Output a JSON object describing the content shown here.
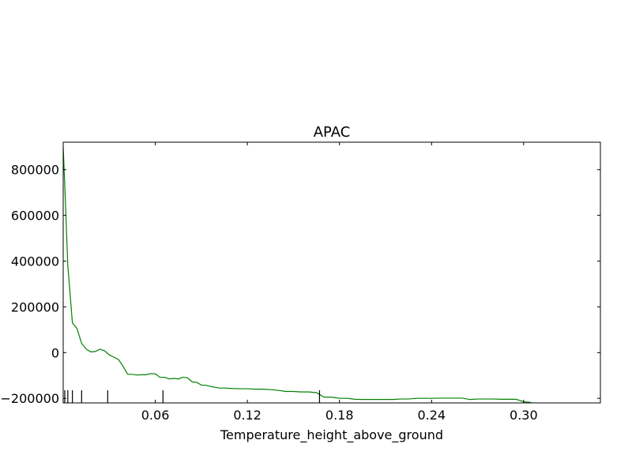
{
  "chart_data": {
    "type": "line",
    "title": "APAC",
    "xlabel": "Temperature_height_above_ground",
    "ylabel": "",
    "xlim": [
      0.0,
      0.35
    ],
    "ylim": [
      -220000,
      920000
    ],
    "xticks": [
      0.06,
      0.12,
      0.18,
      0.24,
      0.3
    ],
    "xtick_labels": [
      "0.06",
      "0.12",
      "0.18",
      "0.24",
      "0.30"
    ],
    "yticks": [
      -200000,
      0,
      200000,
      400000,
      600000,
      800000
    ],
    "ytick_labels": [
      "−200000",
      "0",
      "200000",
      "400000",
      "600000",
      "800000"
    ],
    "grid": false,
    "series": [
      {
        "color": "#008000",
        "x": [
          0.0,
          0.0015,
          0.003,
          0.006,
          0.009,
          0.012,
          0.015,
          0.018,
          0.021,
          0.024,
          0.027,
          0.03,
          0.033,
          0.036,
          0.039,
          0.042,
          0.045,
          0.048,
          0.051,
          0.054,
          0.057,
          0.06,
          0.063,
          0.066,
          0.069,
          0.072,
          0.075,
          0.078,
          0.081,
          0.084,
          0.087,
          0.09,
          0.093,
          0.096,
          0.099,
          0.102,
          0.105,
          0.11,
          0.115,
          0.12,
          0.125,
          0.13,
          0.135,
          0.14,
          0.145,
          0.15,
          0.155,
          0.16,
          0.165,
          0.17,
          0.175,
          0.18,
          0.185,
          0.19,
          0.195,
          0.2,
          0.205,
          0.21,
          0.215,
          0.22,
          0.225,
          0.23,
          0.235,
          0.24,
          0.245,
          0.25,
          0.255,
          0.26,
          0.265,
          0.27,
          0.275,
          0.28,
          0.285,
          0.29,
          0.295,
          0.3,
          0.305
        ],
        "y": [
          900000,
          650000,
          380000,
          130000,
          105000,
          40000,
          15000,
          3000,
          5000,
          15000,
          8000,
          -10000,
          -20000,
          -30000,
          -60000,
          -95000,
          -95000,
          -98000,
          -97000,
          -97000,
          -92000,
          -93000,
          -108000,
          -108000,
          -115000,
          -113000,
          -115000,
          -108000,
          -110000,
          -128000,
          -130000,
          -142000,
          -143000,
          -148000,
          -152000,
          -155000,
          -155000,
          -157000,
          -158000,
          -158000,
          -160000,
          -160000,
          -162000,
          -165000,
          -170000,
          -170000,
          -172000,
          -172000,
          -175000,
          -195000,
          -195000,
          -200000,
          -200000,
          -204000,
          -205000,
          -205000,
          -205000,
          -205000,
          -205000,
          -203000,
          -203000,
          -200000,
          -200000,
          -200000,
          -199000,
          -199000,
          -199000,
          -199000,
          -205000,
          -203000,
          -203000,
          -203000,
          -204000,
          -204000,
          -204000,
          -215000,
          -218000
        ]
      }
    ],
    "rug_x": [
      0.001,
      0.003,
      0.006,
      0.012,
      0.029,
      0.065,
      0.167
    ]
  }
}
